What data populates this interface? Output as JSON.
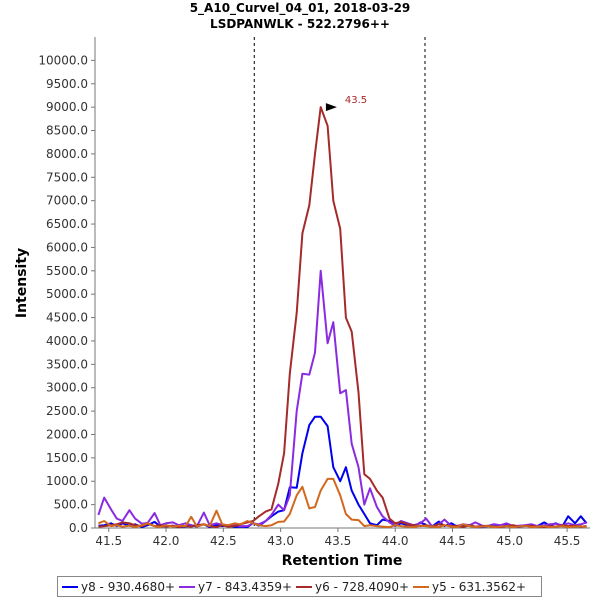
{
  "chart_data": {
    "type": "line",
    "title": "5_A10_Curvel_04_01, 2018-03-29",
    "subtitle": "LSDPANWLK - 522.2796++",
    "xlabel": "Retention Time",
    "ylabel": "Intensity",
    "xlim": [
      41.38,
      45.7
    ],
    "ylim": [
      0,
      10500
    ],
    "x_ticks": [
      "41.5",
      "42.0",
      "42.5",
      "43.0",
      "43.5",
      "44.0",
      "44.5",
      "45.0",
      "45.5"
    ],
    "y_ticks": [
      "0.0",
      "500.0",
      "1000.0",
      "1500.0",
      "2000.0",
      "2500.0",
      "3000.0",
      "3500.0",
      "4000.0",
      "4500.0",
      "5000.0",
      "5500.0",
      "6000.0",
      "6500.0",
      "7000.0",
      "7500.0",
      "8000.0",
      "8500.0",
      "9000.0",
      "9500.0",
      "10000.0"
    ],
    "grid": false,
    "legend_position": "bottom",
    "boundaries": [
      42.77,
      44.26
    ],
    "peak_annotation": {
      "x": 43.5,
      "y": 9000,
      "label": "43.5"
    },
    "series": [
      {
        "name": "y8 - 930.4680+",
        "color": "#0000ee",
        "x": [
          41.41,
          41.46,
          41.52,
          41.57,
          41.62,
          41.68,
          41.73,
          41.79,
          41.84,
          41.9,
          41.95,
          42.0,
          42.06,
          42.11,
          42.17,
          42.22,
          42.27,
          42.33,
          42.38,
          42.44,
          42.49,
          42.54,
          42.6,
          42.65,
          42.71,
          42.76,
          42.81,
          42.87,
          42.92,
          42.98,
          43.03,
          43.08,
          43.14,
          43.19,
          43.25,
          43.3,
          43.35,
          43.41,
          43.46,
          43.52,
          43.57,
          43.62,
          43.68,
          43.73,
          43.78,
          43.84,
          43.89,
          43.95,
          44.0,
          44.05,
          44.11,
          44.16,
          44.22,
          44.27,
          44.32,
          44.38,
          44.43,
          44.49,
          44.54,
          44.59,
          44.65,
          44.7,
          44.76,
          44.81,
          44.86,
          44.92,
          44.97,
          45.03,
          45.08,
          45.13,
          45.19,
          45.24,
          45.3,
          45.35,
          45.4,
          45.46,
          45.51,
          45.57,
          45.62,
          45.67
        ],
        "values": [
          50,
          60,
          100,
          40,
          100,
          50,
          80,
          20,
          60,
          130,
          30,
          40,
          50,
          20,
          30,
          60,
          30,
          80,
          20,
          60,
          40,
          60,
          20,
          30,
          20,
          110,
          50,
          150,
          250,
          350,
          380,
          870,
          860,
          1600,
          2200,
          2380,
          2380,
          2180,
          1300,
          1000,
          1300,
          800,
          500,
          300,
          100,
          60,
          180,
          150,
          40,
          100,
          60,
          20,
          120,
          60,
          30,
          140,
          40,
          100,
          30,
          60,
          50,
          20,
          20,
          40,
          80,
          20,
          90,
          30,
          20,
          60,
          30,
          40,
          120,
          50,
          100,
          40,
          250,
          100,
          250,
          100
        ]
      },
      {
        "name": "y7 - 843.4359+",
        "color": "#8a2be2",
        "x": [
          41.41,
          41.46,
          41.52,
          41.57,
          41.62,
          41.68,
          41.73,
          41.79,
          41.84,
          41.9,
          41.95,
          42.0,
          42.06,
          42.11,
          42.17,
          42.22,
          42.27,
          42.33,
          42.38,
          42.44,
          42.49,
          42.54,
          42.6,
          42.65,
          42.71,
          42.76,
          42.81,
          42.87,
          42.92,
          42.98,
          43.03,
          43.08,
          43.14,
          43.19,
          43.25,
          43.3,
          43.35,
          43.41,
          43.46,
          43.52,
          43.57,
          43.62,
          43.68,
          43.73,
          43.78,
          43.84,
          43.89,
          43.95,
          44.0,
          44.05,
          44.11,
          44.16,
          44.22,
          44.27,
          44.32,
          44.38,
          44.43,
          44.49,
          44.54,
          44.59,
          44.65,
          44.7,
          44.76,
          44.81,
          44.86,
          44.92,
          44.97,
          45.03,
          45.08,
          45.13,
          45.19,
          45.24,
          45.3,
          45.35,
          45.4,
          45.46,
          45.51,
          45.57,
          45.62,
          45.67
        ],
        "values": [
          280,
          650,
          400,
          200,
          150,
          380,
          200,
          90,
          110,
          320,
          60,
          100,
          120,
          60,
          100,
          60,
          40,
          330,
          60,
          100,
          70,
          40,
          60,
          40,
          40,
          100,
          80,
          150,
          280,
          500,
          380,
          700,
          2500,
          3300,
          3280,
          3750,
          5500,
          3950,
          4400,
          2880,
          2950,
          1800,
          1300,
          500,
          850,
          450,
          250,
          120,
          50,
          150,
          100,
          60,
          100,
          200,
          40,
          80,
          180,
          40,
          40,
          80,
          60,
          120,
          50,
          40,
          80,
          60,
          100,
          40,
          50,
          60,
          80,
          40,
          60,
          80,
          90,
          60,
          100,
          60,
          80,
          120
        ]
      },
      {
        "name": "y6 - 728.4090+",
        "color": "#a52a2a",
        "x": [
          41.41,
          41.46,
          41.52,
          41.57,
          41.62,
          41.68,
          41.73,
          41.79,
          41.84,
          41.9,
          41.95,
          42.0,
          42.06,
          42.11,
          42.17,
          42.22,
          42.27,
          42.33,
          42.38,
          42.44,
          42.49,
          42.54,
          42.6,
          42.65,
          42.71,
          42.76,
          42.81,
          42.87,
          42.92,
          42.98,
          43.03,
          43.08,
          43.14,
          43.19,
          43.25,
          43.3,
          43.35,
          43.41,
          43.46,
          43.52,
          43.57,
          43.62,
          43.68,
          43.73,
          43.78,
          43.84,
          43.89,
          43.95,
          44.0,
          44.05,
          44.11,
          44.16,
          44.22,
          44.27,
          44.32,
          44.38,
          44.43,
          44.49,
          44.54,
          44.59,
          44.65,
          44.7,
          44.76,
          44.81,
          44.86,
          44.92,
          44.97,
          45.03,
          45.08,
          45.13,
          45.19,
          45.24,
          45.3,
          45.35,
          45.4,
          45.46,
          45.51,
          45.57,
          45.62,
          45.67
        ],
        "values": [
          30,
          40,
          60,
          80,
          120,
          100,
          60,
          40,
          90,
          40,
          60,
          30,
          50,
          20,
          40,
          30,
          60,
          80,
          40,
          20,
          60,
          30,
          40,
          80,
          120,
          150,
          250,
          350,
          400,
          950,
          1600,
          3300,
          4600,
          6300,
          6900,
          8000,
          9000,
          8600,
          7000,
          6400,
          4500,
          4200,
          2900,
          1150,
          1050,
          800,
          650,
          200,
          100,
          130,
          80,
          60,
          40,
          60,
          30,
          80,
          60,
          40,
          50,
          20,
          60,
          30,
          40,
          50,
          30,
          20,
          40,
          60,
          30,
          40,
          50,
          30,
          20,
          40,
          30,
          60,
          40,
          50,
          30,
          40
        ]
      },
      {
        "name": "y5 - 631.3562+",
        "color": "#d2691e",
        "x": [
          41.41,
          41.46,
          41.52,
          41.57,
          41.62,
          41.68,
          41.73,
          41.79,
          41.84,
          41.9,
          41.95,
          42.0,
          42.06,
          42.11,
          42.17,
          42.22,
          42.27,
          42.33,
          42.38,
          42.44,
          42.49,
          42.54,
          42.6,
          42.65,
          42.71,
          42.76,
          42.81,
          42.87,
          42.92,
          42.98,
          43.03,
          43.08,
          43.14,
          43.19,
          43.25,
          43.3,
          43.35,
          43.41,
          43.46,
          43.52,
          43.57,
          43.62,
          43.68,
          43.73,
          43.78,
          43.84,
          43.89,
          43.95,
          44.0,
          44.05,
          44.11,
          44.16,
          44.22,
          44.27,
          44.32,
          44.38,
          44.43,
          44.49,
          44.54,
          44.59,
          44.65,
          44.7,
          44.76,
          44.81,
          44.86,
          44.92,
          44.97,
          45.03,
          45.08,
          45.13,
          45.19,
          45.24,
          45.3,
          45.35,
          45.4,
          45.46,
          45.51,
          45.57,
          45.62,
          45.67
        ],
        "values": [
          100,
          150,
          40,
          60,
          30,
          50,
          20,
          60,
          100,
          40,
          20,
          60,
          30,
          50,
          40,
          240,
          30,
          80,
          40,
          370,
          80,
          60,
          100,
          80,
          150,
          100,
          60,
          40,
          60,
          130,
          140,
          300,
          700,
          880,
          420,
          450,
          800,
          1050,
          1050,
          700,
          300,
          180,
          170,
          40,
          60,
          40,
          30,
          20,
          60,
          40,
          30,
          20,
          50,
          40,
          30,
          20,
          60,
          30,
          20,
          80,
          40,
          20,
          30,
          40,
          20,
          30,
          40,
          20,
          30,
          50,
          20,
          30,
          40,
          20,
          30,
          40,
          20,
          30,
          40,
          20
        ]
      }
    ]
  }
}
